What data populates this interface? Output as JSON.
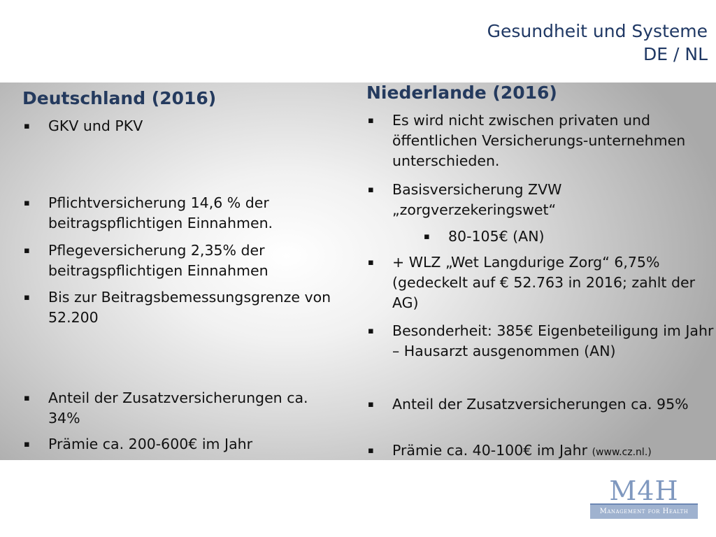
{
  "title": {
    "line1": "Gesundheit und Systeme",
    "line2": "DE / NL"
  },
  "deutschland": {
    "heading": "Deutschland (2016)",
    "items": [
      "GKV und PKV",
      "Pflichtversicherung  14,6 % der beitragspflichtigen Einnahmen.",
      "Pflegeversicherung 2,35% der beitragspflichtigen Einnahmen",
      "Bis zur Beitragsbemessungsgrenze von 52.200",
      "Anteil der Zusatzversicherungen ca. 34%",
      "Prämie ca. 200-600€ im Jahr"
    ]
  },
  "niederlande": {
    "heading": "Niederlande (2016)",
    "items": [
      "Es wird nicht  zwischen privaten und öffentlichen Versicherungs-unternehmen unterschieden.",
      "Basisversicherung ZVW „zorgverzekeringswet“",
      "80-105€ (AN)",
      "+ WLZ „Wet Langdurige Zorg“  6,75% (gedeckelt auf € 52.763 in 2016;  zahlt der AG)",
      "Besonderheit: 385€ Eigenbeteiligung im Jahr – Hausarzt ausgenommen (AN)",
      "Anteil der Zusatzversicherungen ca. 95%",
      "Prämie ca. 40-100€ im Jahr",
      "(www.cz.nl.)"
    ]
  },
  "bullet_glyph": "▪",
  "logo": {
    "mark": "M4H",
    "tagline": "Management for Health"
  }
}
